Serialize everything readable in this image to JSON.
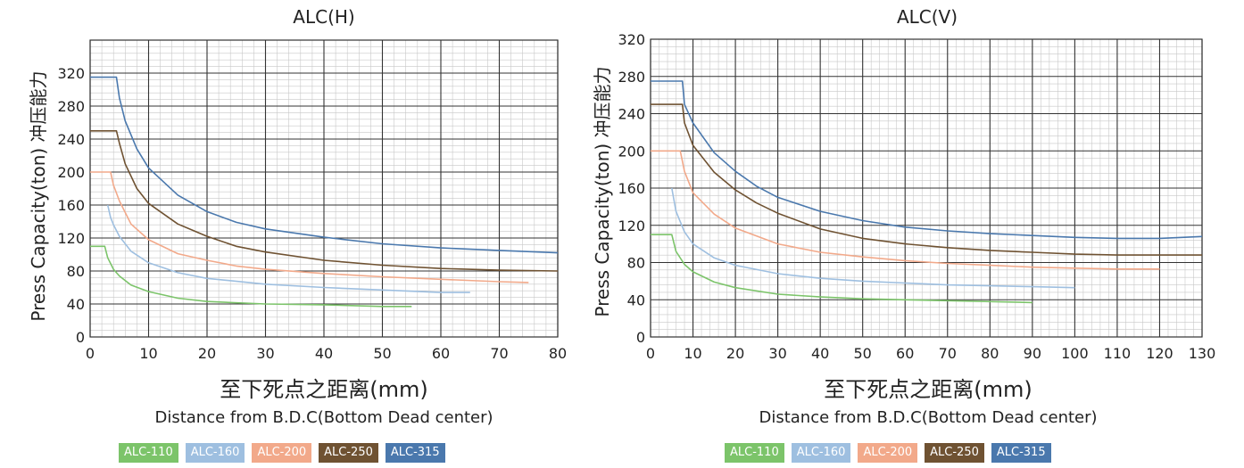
{
  "colors": {
    "ALC-110": "#7cc46a",
    "ALC-160": "#9ebfe0",
    "ALC-200": "#f2a98a",
    "ALC-250": "#6f5232",
    "ALC-315": "#4a78ad"
  },
  "chart_data": [
    {
      "type": "line",
      "title": "ALC(H)",
      "ylabel": "Press Capacity(ton) 冲压能力",
      "xlabel_cn": "至下死点之距离(mm)",
      "xlabel_en": "Distance from B.D.C(Bottom Dead center)",
      "xlim": [
        0,
        80
      ],
      "ylim": [
        0,
        360
      ],
      "xticks": [
        0,
        10,
        20,
        30,
        40,
        50,
        60,
        70,
        80
      ],
      "yticks": [
        0,
        40,
        80,
        120,
        160,
        200,
        240,
        280,
        320
      ],
      "grid": true,
      "legend_position": "bottom",
      "series": [
        {
          "name": "ALC-110",
          "x": [
            0,
            2.5,
            3,
            4,
            5,
            7,
            10,
            15,
            20,
            30,
            40,
            50,
            55
          ],
          "y": [
            110,
            110,
            96,
            82,
            74,
            63,
            55,
            47,
            43,
            40,
            39,
            37,
            37
          ]
        },
        {
          "name": "ALC-160",
          "x": [
            3,
            3.5,
            4,
            5,
            7,
            10,
            15,
            20,
            30,
            40,
            50,
            60,
            65
          ],
          "y": [
            160,
            145,
            136,
            122,
            104,
            90,
            78,
            71,
            64,
            60,
            57,
            54,
            54
          ]
        },
        {
          "name": "ALC-200",
          "x": [
            0,
            3.5,
            4,
            5,
            7,
            10,
            15,
            20,
            25,
            30,
            40,
            50,
            60,
            70,
            75
          ],
          "y": [
            200,
            200,
            184,
            165,
            137,
            118,
            101,
            93,
            86,
            82,
            77,
            73,
            70,
            67,
            66
          ]
        },
        {
          "name": "ALC-250",
          "x": [
            0,
            4.5,
            5,
            6,
            8,
            10,
            15,
            20,
            25,
            30,
            40,
            50,
            60,
            70,
            80
          ],
          "y": [
            250,
            250,
            235,
            210,
            180,
            162,
            137,
            122,
            110,
            103,
            93,
            87,
            83,
            81,
            80
          ]
        },
        {
          "name": "ALC-315",
          "x": [
            0,
            4.5,
            5,
            6,
            8,
            10,
            15,
            20,
            25,
            30,
            40,
            50,
            60,
            70,
            80
          ],
          "y": [
            315,
            315,
            290,
            262,
            228,
            205,
            172,
            152,
            139,
            131,
            121,
            113,
            108,
            105,
            102
          ]
        }
      ]
    },
    {
      "type": "line",
      "title": "ALC(V)",
      "ylabel": "Press Capacity(ton) 冲压能力",
      "xlabel_cn": "至下死点之距离(mm)",
      "xlabel_en": "Distance from B.D.C(Bottom Dead center)",
      "xlim": [
        0,
        130
      ],
      "ylim": [
        0,
        320
      ],
      "xticks": [
        0,
        10,
        20,
        30,
        40,
        50,
        60,
        70,
        80,
        90,
        100,
        110,
        120,
        130
      ],
      "yticks": [
        0,
        40,
        80,
        120,
        160,
        200,
        240,
        280,
        320
      ],
      "grid": true,
      "legend_position": "bottom",
      "series": [
        {
          "name": "ALC-110",
          "x": [
            0,
            5,
            6,
            8,
            10,
            15,
            20,
            30,
            40,
            50,
            60,
            70,
            80,
            90
          ],
          "y": [
            110,
            110,
            92,
            78,
            70,
            59,
            53,
            46,
            43,
            41,
            40,
            39,
            38,
            37
          ]
        },
        {
          "name": "ALC-160",
          "x": [
            5,
            6,
            8,
            10,
            15,
            20,
            30,
            40,
            50,
            60,
            70,
            80,
            90,
            100
          ],
          "y": [
            160,
            135,
            113,
            100,
            85,
            77,
            68,
            63,
            60,
            58,
            56,
            55,
            54,
            53
          ]
        },
        {
          "name": "ALC-200",
          "x": [
            0,
            7,
            8,
            10,
            15,
            20,
            30,
            40,
            50,
            60,
            70,
            80,
            90,
            100,
            110,
            120
          ],
          "y": [
            200,
            200,
            178,
            155,
            132,
            117,
            100,
            91,
            86,
            82,
            79,
            77,
            75,
            74,
            73,
            73
          ]
        },
        {
          "name": "ALC-250",
          "x": [
            0,
            7.5,
            8,
            10,
            15,
            20,
            25,
            30,
            40,
            50,
            60,
            70,
            80,
            90,
            100,
            110,
            120,
            130
          ],
          "y": [
            250,
            250,
            230,
            206,
            177,
            158,
            144,
            133,
            116,
            106,
            100,
            96,
            93,
            91,
            89,
            88,
            88,
            88
          ]
        },
        {
          "name": "ALC-315",
          "x": [
            0,
            7.5,
            8,
            10,
            15,
            20,
            25,
            30,
            40,
            50,
            60,
            70,
            80,
            90,
            100,
            110,
            120,
            130
          ],
          "y": [
            275,
            275,
            250,
            230,
            198,
            178,
            162,
            150,
            135,
            125,
            118,
            114,
            111,
            109,
            107,
            106,
            106,
            108
          ]
        }
      ]
    }
  ]
}
